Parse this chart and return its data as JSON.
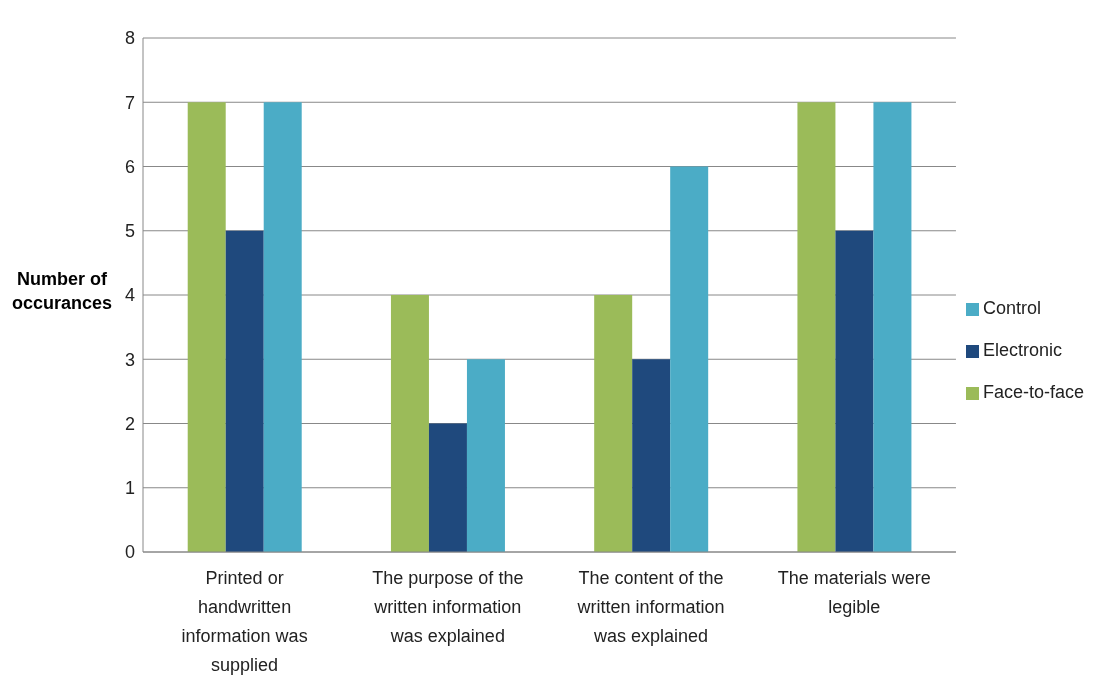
{
  "chart_data": {
    "type": "bar",
    "ylabel": "Number of occurances",
    "categories": [
      "Printed or handwritten information was supplied",
      "The purpose of the written information was explained",
      "The content of the written information was explained",
      "The materials were legible"
    ],
    "series": [
      {
        "name": "Face-to-face",
        "color": "#9bbb59",
        "values": [
          7,
          4,
          4,
          7
        ]
      },
      {
        "name": "Electronic",
        "color": "#1f497d",
        "values": [
          5,
          2,
          3,
          5
        ]
      },
      {
        "name": "Control",
        "color": "#4bacc6",
        "values": [
          7,
          3,
          6,
          7
        ]
      }
    ],
    "ylim": [
      0,
      8
    ],
    "yticks": [
      0,
      1,
      2,
      3,
      4,
      5,
      6,
      7,
      8
    ],
    "grid": "y",
    "legend": "right"
  }
}
